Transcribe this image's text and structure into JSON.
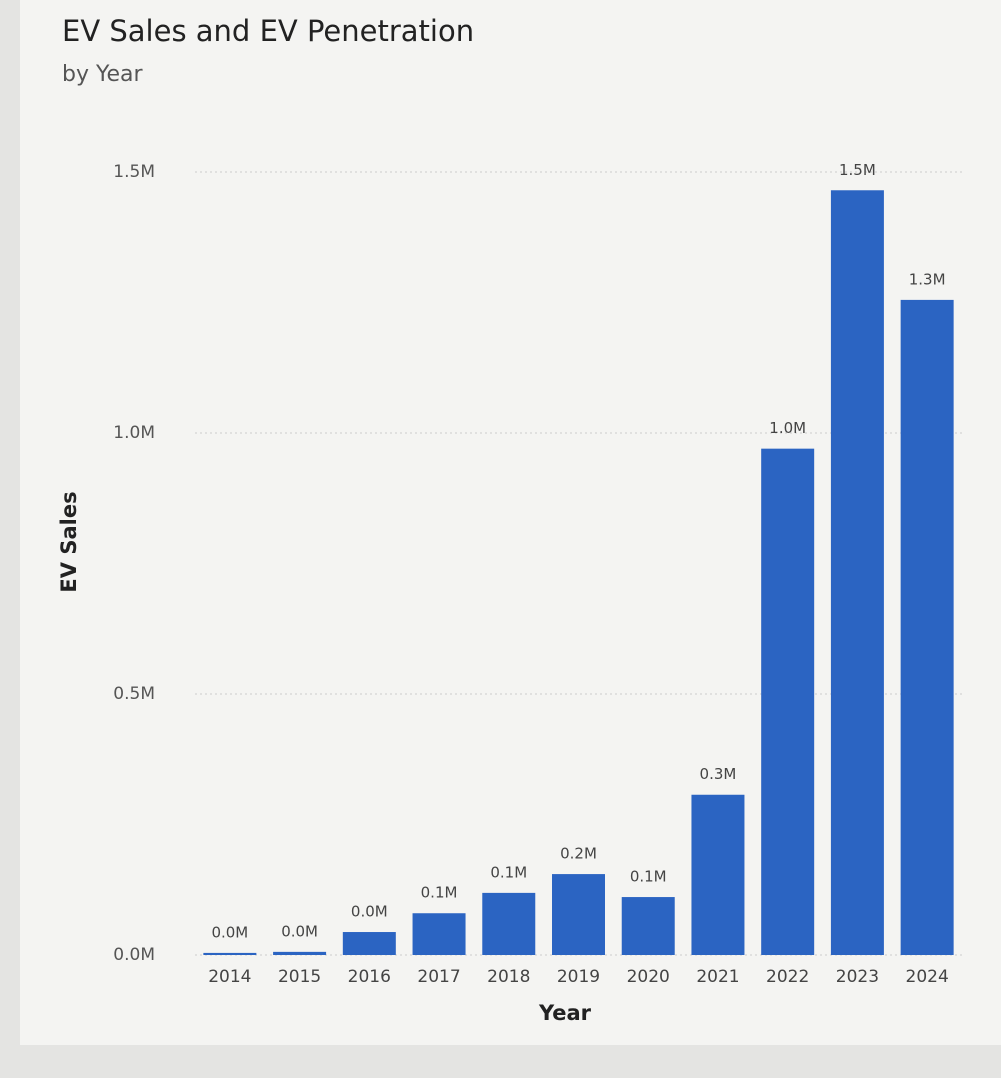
{
  "chart_data": {
    "type": "bar",
    "title": "EV Sales and EV Penetration",
    "subtitle": "by Year",
    "x_label": "Year",
    "y_label": "EV Sales",
    "categories": [
      "2014",
      "2015",
      "2016",
      "2017",
      "2018",
      "2019",
      "2020",
      "2021",
      "2022",
      "2023",
      "2024"
    ],
    "values": [
      4000,
      6000,
      44000,
      80000,
      119000,
      155000,
      111000,
      307000,
      970000,
      1465000,
      1255000
    ],
    "value_labels": [
      "0.0M",
      "0.0M",
      "0.0M",
      "0.1M",
      "0.1M",
      "0.2M",
      "0.1M",
      "0.3M",
      "1.0M",
      "1.5M",
      "1.3M"
    ],
    "color": "#2b64c2",
    "ylim": [
      0,
      1500000
    ],
    "yticks": [
      {
        "value": 0,
        "label": "0.0M"
      },
      {
        "value": 500000,
        "label": "0.5M"
      },
      {
        "value": 1000000,
        "label": "1.0M"
      },
      {
        "value": 1500000,
        "label": "1.5M"
      }
    ],
    "grid": true
  }
}
